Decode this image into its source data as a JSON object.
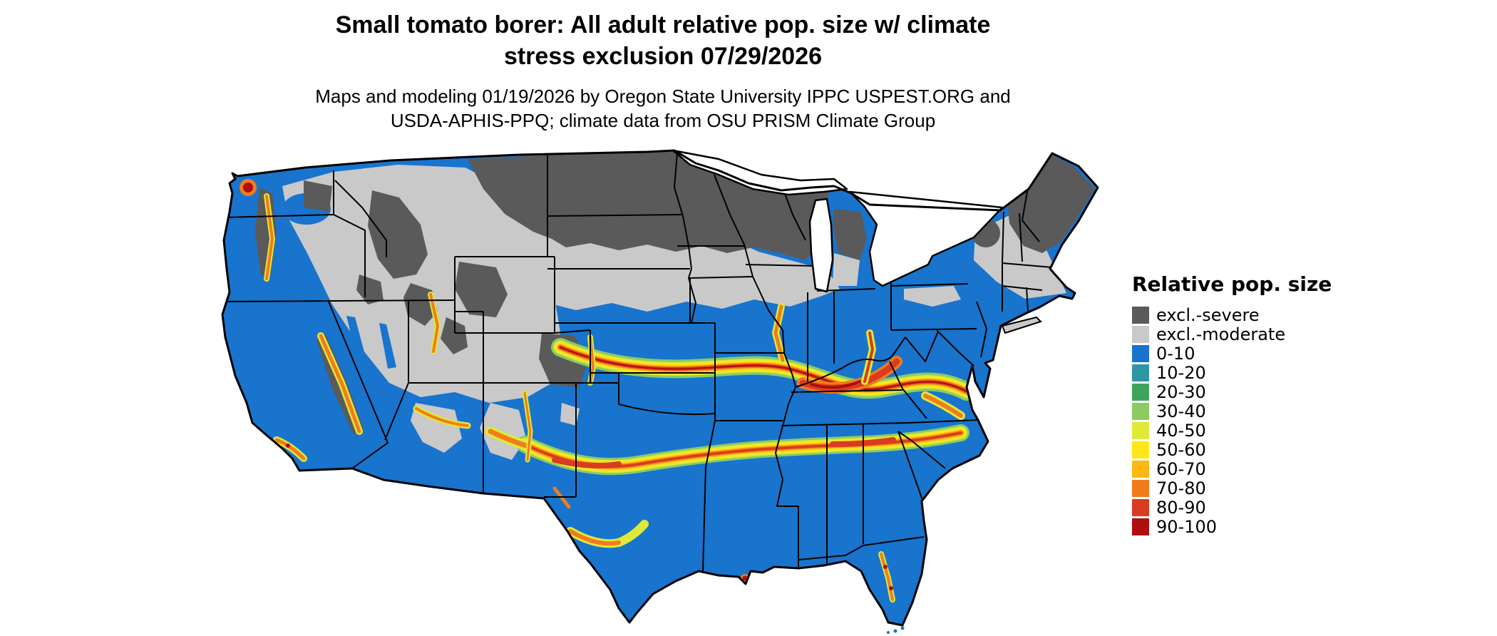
{
  "header": {
    "title_line1": "Small tomato borer: All adult relative pop. size w/ climate",
    "title_line2": "stress exclusion 07/29/2026",
    "subtitle_line1": "Maps and modeling 01/19/2026 by Oregon State University IPPC USPEST.ORG and",
    "subtitle_line2": "USDA-APHIS-PPQ; climate data from OSU PRISM Climate Group"
  },
  "legend": {
    "title": "Relative pop. size",
    "items": [
      {
        "label": "excl.-severe",
        "color": "#5A5A5A"
      },
      {
        "label": "excl.-moderate",
        "color": "#C9C9C9"
      },
      {
        "label": "0-10",
        "color": "#1874CD"
      },
      {
        "label": "10-20",
        "color": "#2F97A3"
      },
      {
        "label": "20-30",
        "color": "#3FA45B"
      },
      {
        "label": "30-40",
        "color": "#8CCB62"
      },
      {
        "label": "40-50",
        "color": "#DFE937"
      },
      {
        "label": "50-60",
        "color": "#FFE619"
      },
      {
        "label": "60-70",
        "color": "#FDB813"
      },
      {
        "label": "70-80",
        "color": "#F17C1D"
      },
      {
        "label": "80-90",
        "color": "#DA3B21"
      },
      {
        "label": "90-100",
        "color": "#AE0E0E"
      }
    ]
  },
  "map": {
    "region": "Contiguous United States",
    "water_color": "#FFFFFF",
    "boundary_color": "#000000"
  }
}
